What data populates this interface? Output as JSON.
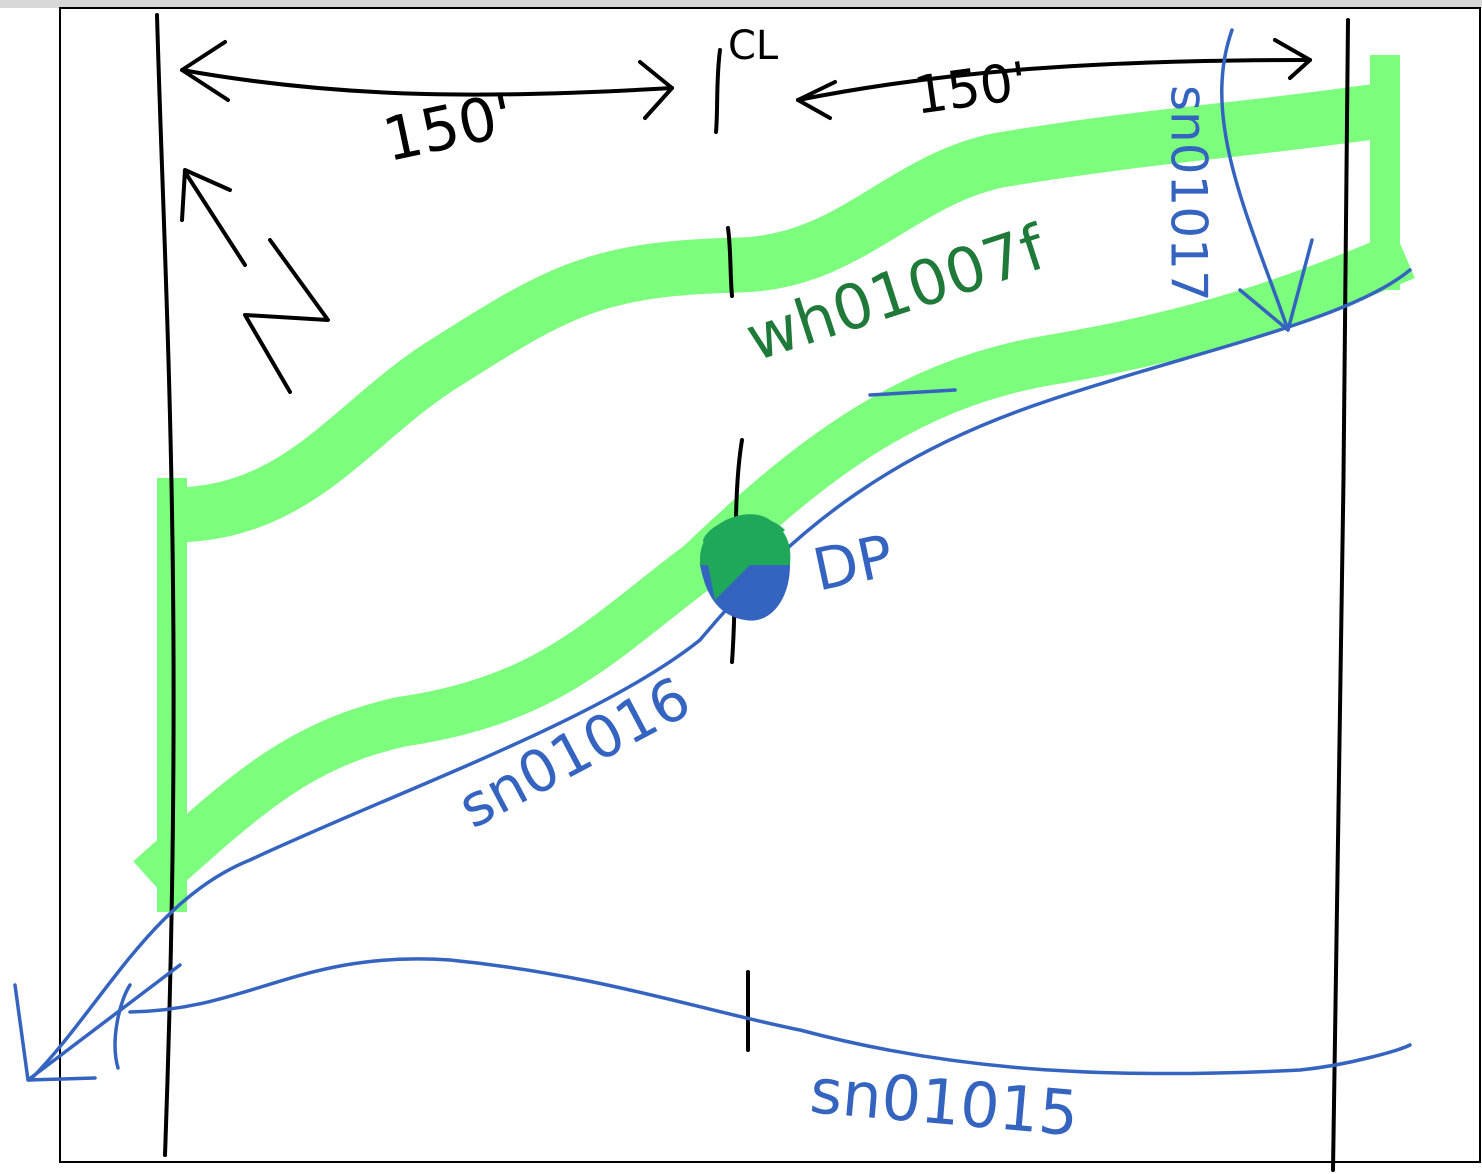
{
  "labels": {
    "left_width": "150'",
    "right_width": "150'",
    "centerline": "CL",
    "north": "N",
    "main_name": "wh01007f",
    "top_right_name": "sn01017",
    "middle_name": "sn01016",
    "point": "DP",
    "bottom_name": "sn01015"
  }
}
